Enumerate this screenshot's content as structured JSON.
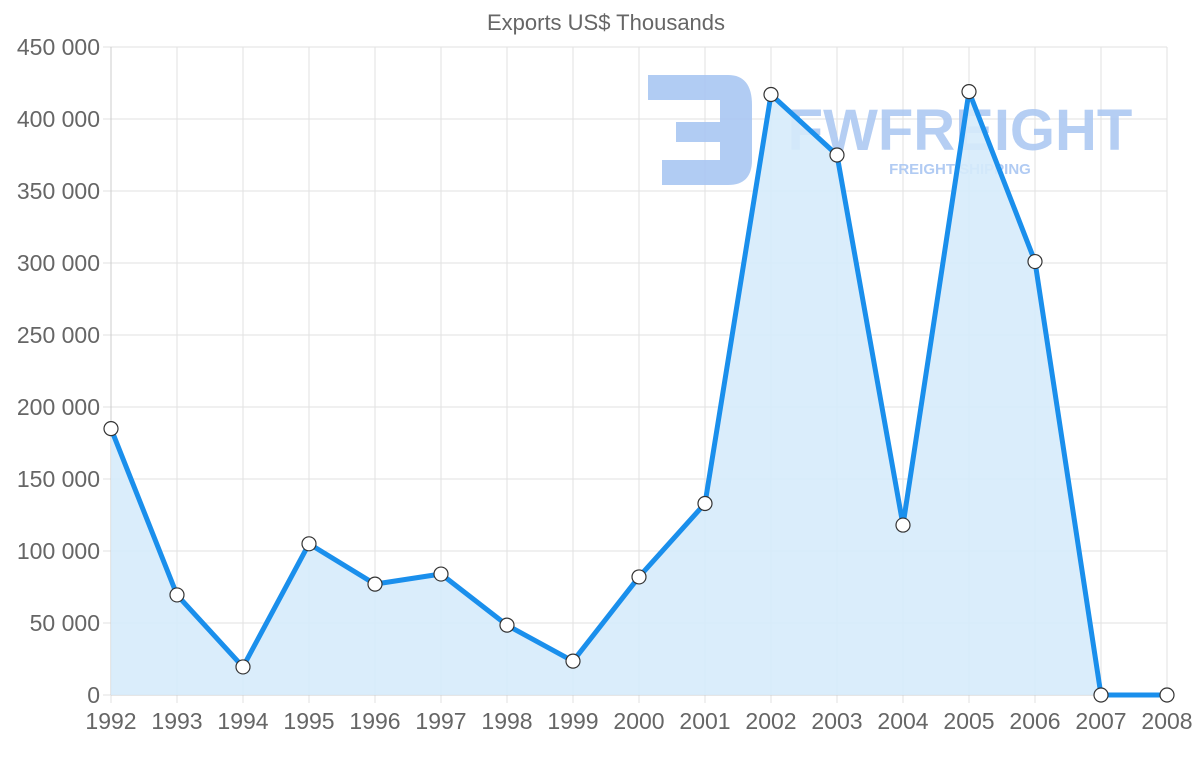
{
  "chart_data": {
    "type": "line",
    "title": "Exports US$ Thousands",
    "xlabel": "",
    "ylabel": "",
    "categories": [
      "1992",
      "1993",
      "1994",
      "1995",
      "1996",
      "1997",
      "1998",
      "1999",
      "2000",
      "2001",
      "2002",
      "2003",
      "2004",
      "2005",
      "2006",
      "2007",
      "2008"
    ],
    "series": [
      {
        "name": "Exports US$ Thousands",
        "values": [
          185000,
          69500,
          19500,
          105000,
          77000,
          84000,
          48500,
          23500,
          82000,
          133000,
          417000,
          375000,
          118000,
          419000,
          301000,
          0,
          0
        ],
        "fill": true
      }
    ],
    "ylim": [
      0,
      450000
    ],
    "yticks": [
      0,
      50000,
      100000,
      150000,
      200000,
      250000,
      300000,
      350000,
      400000,
      450000
    ],
    "ytick_labels": [
      "0",
      "50 000",
      "100 000",
      "150 000",
      "200 000",
      "250 000",
      "300 000",
      "350 000",
      "400 000",
      "450 000"
    ],
    "grid": true,
    "legend": "none",
    "colors": {
      "line": "#1a8fec",
      "fill": "#d6ebfb",
      "point_fill": "#ffffff",
      "point_stroke": "#333333",
      "grid": "#e2e2e2",
      "text": "#666666"
    }
  },
  "watermark": {
    "brand": "FWFREIGHT",
    "tagline": "FREIGHT SHIPPING",
    "color": "#a9c6f2"
  }
}
